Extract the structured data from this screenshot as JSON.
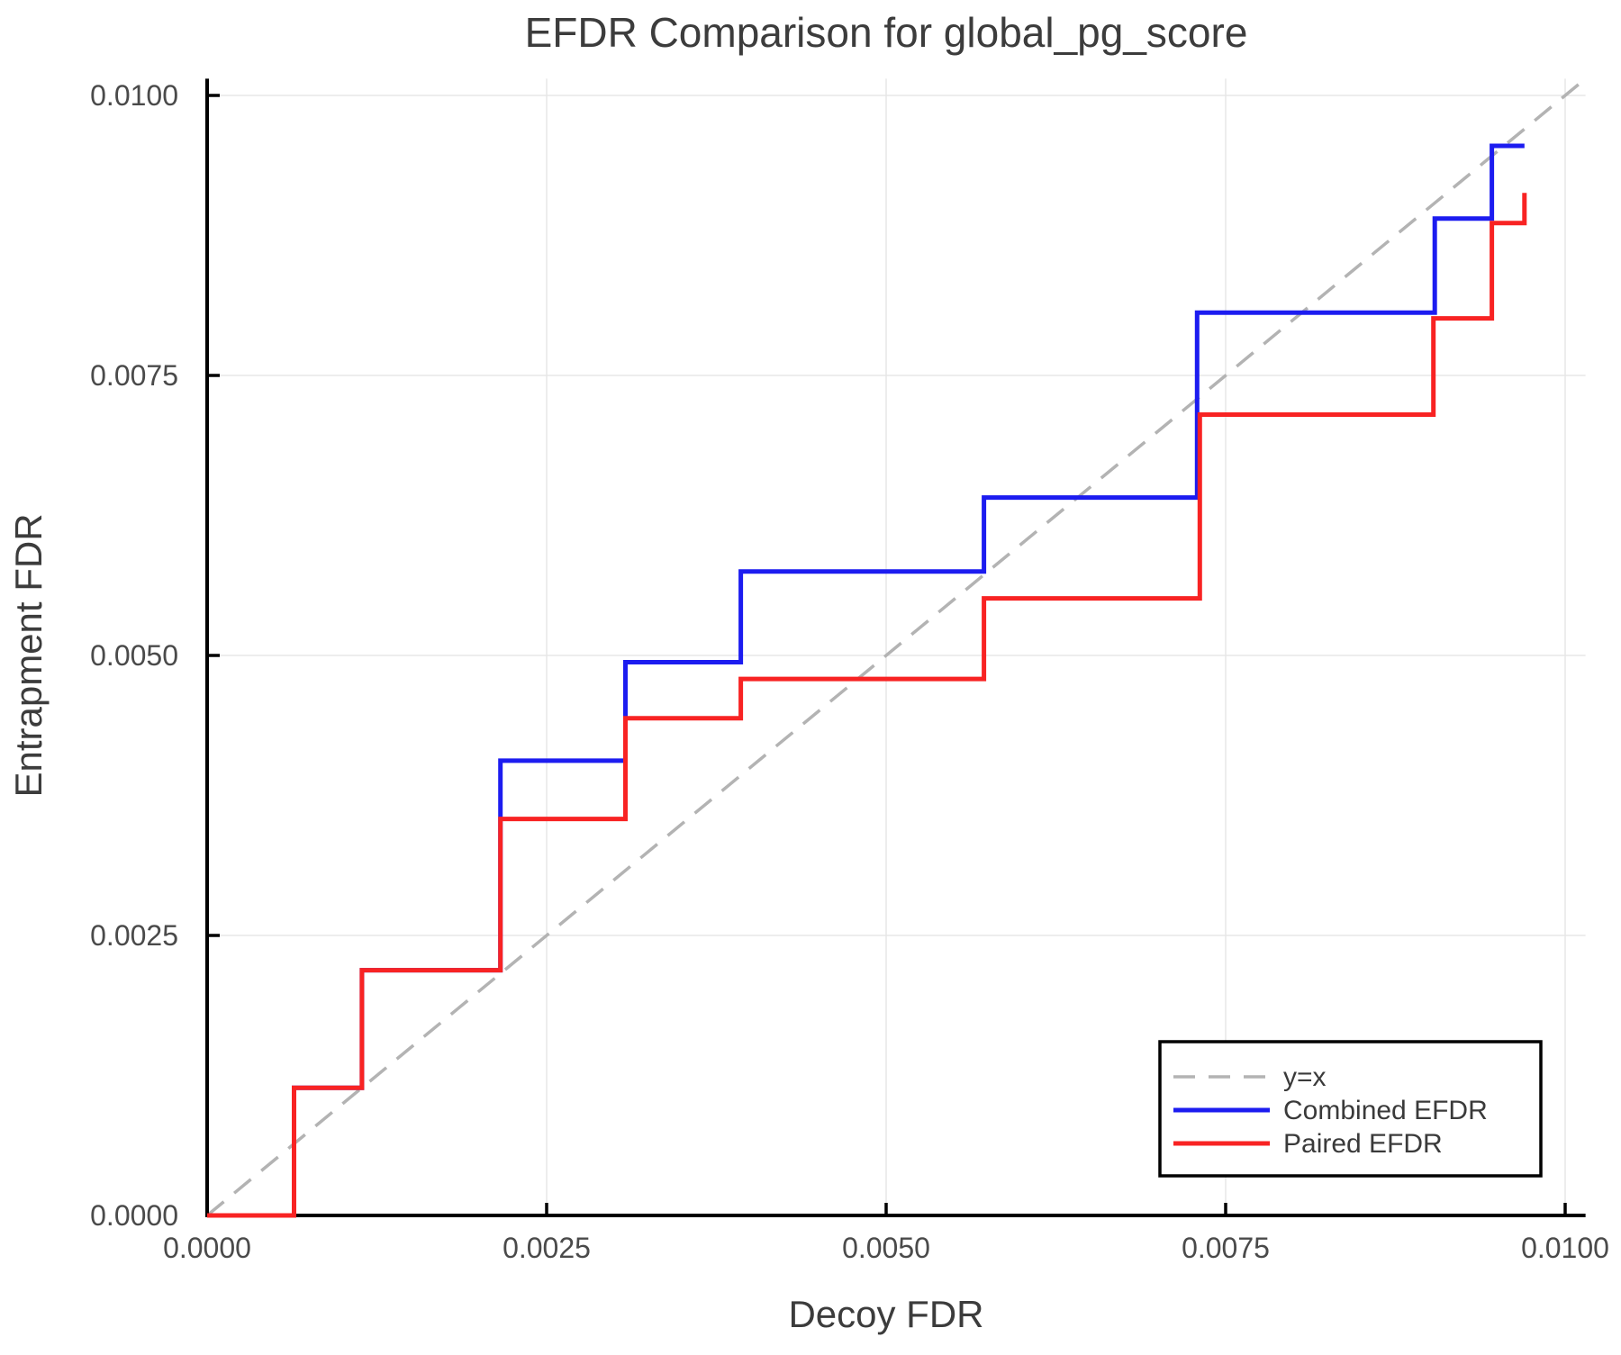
{
  "title": "EFDR Comparison for global_pg_score",
  "chart_data": {
    "type": "line",
    "subtype": "step",
    "title": "EFDR Comparison for global_pg_score",
    "xlabel": "Decoy FDR",
    "ylabel": "Entrapment FDR",
    "xlim": [
      0.0,
      0.01015
    ],
    "ylim": [
      0.0,
      0.01015
    ],
    "xticks": [
      0.0,
      0.0025,
      0.005,
      0.0075,
      0.01
    ],
    "xtick_labels": [
      "0.0000",
      "0.0025",
      "0.0050",
      "0.0075",
      "0.0100"
    ],
    "yticks": [
      0.0,
      0.0025,
      0.005,
      0.0075,
      0.01
    ],
    "ytick_labels": [
      "0.0000",
      "0.0025",
      "0.0050",
      "0.0075",
      "0.0100"
    ],
    "grid": true,
    "legend_position": "lower-right",
    "series": [
      {
        "name": "y=x",
        "color": "#b3b3b3",
        "style": "dashed",
        "width": 3.5,
        "points": [
          [
            0.0,
            0.0
          ],
          [
            0.01015,
            0.01015
          ]
        ]
      },
      {
        "name": "Combined EFDR",
        "color": "#1c1cf0",
        "style": "solid",
        "width": 5,
        "points": [
          [
            0.0,
            0.0
          ],
          [
            0.00064,
            0.0
          ],
          [
            0.00064,
            0.00114
          ],
          [
            0.00114,
            0.00114
          ],
          [
            0.00114,
            0.00219
          ],
          [
            0.00216,
            0.00219
          ],
          [
            0.00216,
            0.00406
          ],
          [
            0.00308,
            0.00406
          ],
          [
            0.00308,
            0.00494
          ],
          [
            0.00393,
            0.00494
          ],
          [
            0.00393,
            0.00575
          ],
          [
            0.00572,
            0.00575
          ],
          [
            0.00572,
            0.00641
          ],
          [
            0.00729,
            0.00641
          ],
          [
            0.00729,
            0.00806
          ],
          [
            0.00904,
            0.00806
          ],
          [
            0.00904,
            0.0089
          ],
          [
            0.00946,
            0.0089
          ],
          [
            0.00946,
            0.00955
          ],
          [
            0.0097,
            0.00955
          ]
        ]
      },
      {
        "name": "Paired EFDR",
        "color": "#f82323",
        "style": "solid",
        "width": 5,
        "points": [
          [
            0.0,
            0.0
          ],
          [
            0.00064,
            0.0
          ],
          [
            0.00064,
            0.00114
          ],
          [
            0.00114,
            0.00114
          ],
          [
            0.00114,
            0.00219
          ],
          [
            0.00216,
            0.00219
          ],
          [
            0.00216,
            0.00354
          ],
          [
            0.00308,
            0.00354
          ],
          [
            0.00308,
            0.00444
          ],
          [
            0.00393,
            0.00444
          ],
          [
            0.00393,
            0.00479
          ],
          [
            0.00572,
            0.00479
          ],
          [
            0.00572,
            0.00551
          ],
          [
            0.00731,
            0.00551
          ],
          [
            0.00731,
            0.00715
          ],
          [
            0.00903,
            0.00715
          ],
          [
            0.00903,
            0.00801
          ],
          [
            0.00946,
            0.00801
          ],
          [
            0.00946,
            0.00886
          ],
          [
            0.0097,
            0.00886
          ],
          [
            0.0097,
            0.00913
          ]
        ]
      }
    ],
    "colors": {
      "grid": "#e7e7e7",
      "spine": "#000000",
      "identity": "#b3b3b3",
      "combined": "#1c1cf0",
      "paired": "#f82323"
    }
  }
}
